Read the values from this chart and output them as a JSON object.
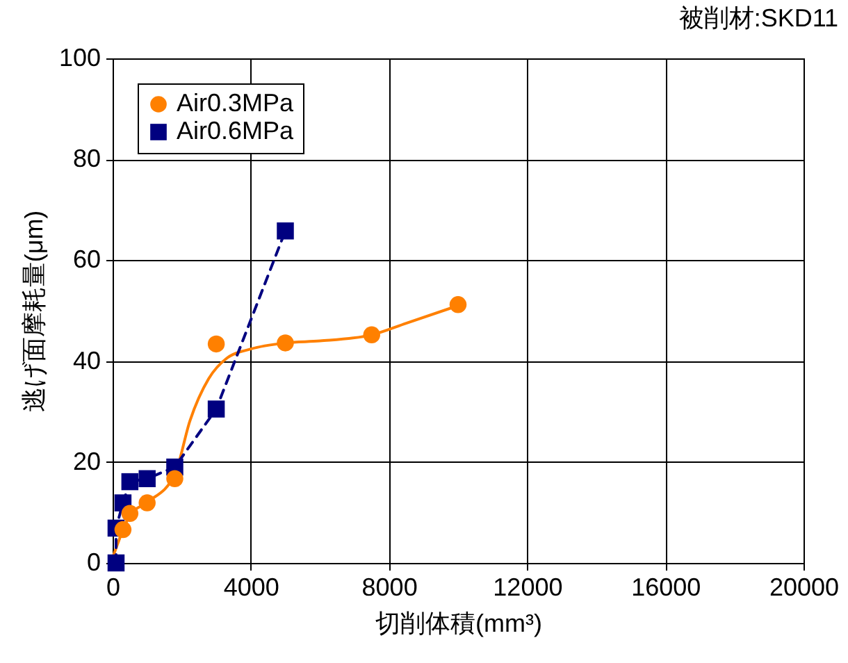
{
  "chart_data": {
    "type": "scatter",
    "title": "被削材:SKD11",
    "xlabel": "切削体積(mm³)",
    "ylabel": "逃げ面摩耗量(μm)",
    "xlim": [
      0,
      20000
    ],
    "xticks": [
      0,
      4000,
      8000,
      12000,
      16000,
      20000
    ],
    "ylim": [
      0,
      100
    ],
    "yticks": [
      0,
      20,
      40,
      60,
      80,
      100
    ],
    "grid": true,
    "legend": "top left",
    "series": [
      {
        "name": "Air0.3MPa",
        "marker": "circle",
        "color": "#ff8000",
        "x": [
          300,
          500,
          1000,
          1800,
          3000,
          5000,
          7500,
          10000
        ],
        "values": [
          6.6,
          9.8,
          11.9,
          16.7,
          43.4,
          43.6,
          45.2,
          51.2
        ]
      },
      {
        "type": "line",
        "marker": "none",
        "line_style": "solid",
        "color": "#ff8000",
        "x": [
          0,
          300,
          500,
          1000,
          1800,
          2240,
          2780,
          3310,
          4000,
          5000,
          6000,
          7500,
          8500,
          10000
        ],
        "values": [
          1,
          6.5,
          9.5,
          12,
          17.5,
          28.2,
          36.5,
          40.6,
          42.4,
          43.6,
          44,
          45.2,
          47.5,
          51
        ]
      },
      {
        "name": "Air0.6MPa",
        "type": "line",
        "marker": "square",
        "line_style": "dashed",
        "color": "#000080",
        "x": [
          100,
          100,
          300,
          500,
          1000,
          1800,
          3000,
          5000
        ],
        "values": [
          0,
          6.9,
          11.9,
          16.1,
          16.7,
          19,
          30.5,
          65.8
        ]
      }
    ]
  }
}
